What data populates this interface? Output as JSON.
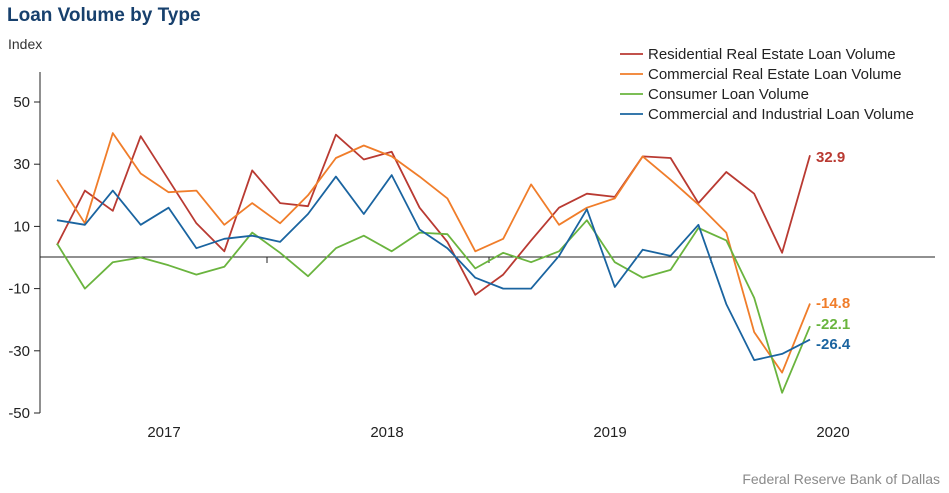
{
  "chart_data": {
    "type": "line",
    "title": "Loan Volume by Type",
    "ylabel": "Index",
    "ylim": [
      -50,
      60
    ],
    "y_ticks": [
      50,
      30,
      10,
      -10,
      -30,
      -50
    ],
    "x_tick_labels": [
      "2017",
      "2018",
      "2019",
      "2020"
    ],
    "legend_position": "top-right",
    "source": "Federal Reserve Bank of Dallas",
    "series": [
      {
        "name": "Residential Real Estate Loan Volume",
        "color": "#b93a32",
        "end_label": "32.9",
        "values": [
          4,
          21.5,
          15,
          39,
          25,
          11,
          2,
          28,
          17.5,
          16.5,
          39.5,
          31.5,
          34,
          16,
          5,
          -12,
          -5.5,
          5.5,
          16,
          20.5,
          19.5,
          32.5,
          32,
          17.5,
          27.5,
          20.5,
          1.5,
          32.9
        ]
      },
      {
        "name": "Commercial Real Estate Loan Volume",
        "color": "#f07d2a",
        "end_label": "-14.8",
        "values": [
          25,
          11,
          40,
          27,
          21,
          21.5,
          10.5,
          17.5,
          11,
          20,
          32,
          36,
          32.5,
          26,
          19,
          2,
          6,
          23.5,
          10.5,
          16,
          19,
          32.5,
          25,
          17,
          8,
          -24,
          -37,
          -14.8
        ]
      },
      {
        "name": "Consumer Loan Volume",
        "color": "#6ab43e",
        "end_label": "-22.1",
        "values": [
          4.5,
          -10,
          -1.5,
          0,
          -2.5,
          -5.5,
          -3,
          8,
          1.5,
          -6,
          3,
          7,
          2,
          8,
          7.5,
          -3.5,
          1.5,
          -1.5,
          2,
          12,
          -1.5,
          -6.5,
          -4,
          9.5,
          5.5,
          -13,
          -43.5,
          -22.1
        ]
      },
      {
        "name": "Commercial and Industrial Loan Volume",
        "color": "#1a64a0",
        "end_label": "-26.4",
        "values": [
          12,
          10.5,
          21.5,
          10.5,
          16,
          3,
          6,
          7,
          5,
          14,
          26,
          14,
          26.5,
          9,
          3,
          -6.5,
          -10,
          -10,
          0.5,
          15.5,
          -9.5,
          2.5,
          0.5,
          10.5,
          -15,
          -33,
          -31,
          -26.4
        ]
      }
    ]
  }
}
